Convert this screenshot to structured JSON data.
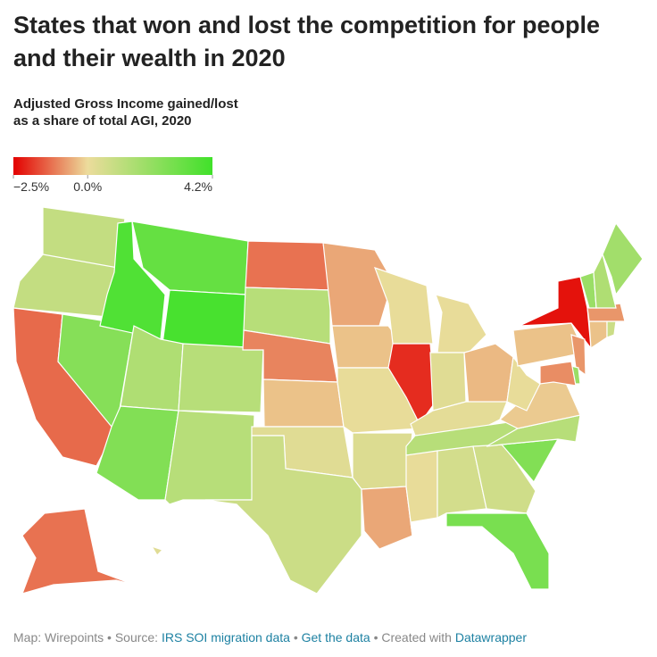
{
  "header": {
    "title": "States that won and lost the competition for people and their wealth in 2020",
    "subtitle": "Adjusted Gross Income gained/lost as a share of total AGI, 2020"
  },
  "chart_data": {
    "type": "choropleth",
    "legend_ticks": [
      {
        "value": -2.5,
        "label": "−2.5%"
      },
      {
        "value": 0,
        "label": "0.0%"
      },
      {
        "value": 4.2,
        "label": "4.2%"
      }
    ],
    "legend_colors": [
      "#e30000",
      "#ecdc9c",
      "#40e12a"
    ],
    "values": [
      1.0,
      1.0,
      -1.3,
      2.5,
      3.8,
      3.3,
      4.0,
      1.5,
      1.3,
      2.6,
      1.3,
      -1.2,
      1.3,
      -1.0,
      -0.3,
      0.3,
      0.8,
      -0.6,
      -0.3,
      0.1,
      0.4,
      -0.6,
      0.1,
      -2.0,
      0.1,
      0.3,
      -0.4,
      0.2,
      1.3,
      0.1,
      0.6,
      0.7,
      2.8,
      2.6,
      1.3,
      -0.2,
      0.1,
      -0.3,
      -2.3,
      -0.8,
      2.0,
      -0.9,
      -0.3,
      0.8,
      -0.8,
      2.0,
      1.5,
      1.8,
      -1.2,
      0.3
    ]
  },
  "footer": {
    "credit": "Map: Wirepoints • Source:",
    "source": "IRS SOI migration data",
    "sep": "•",
    "data_link": "Get the data",
    "created": "• Created with",
    "tool": "Datawrapper"
  }
}
